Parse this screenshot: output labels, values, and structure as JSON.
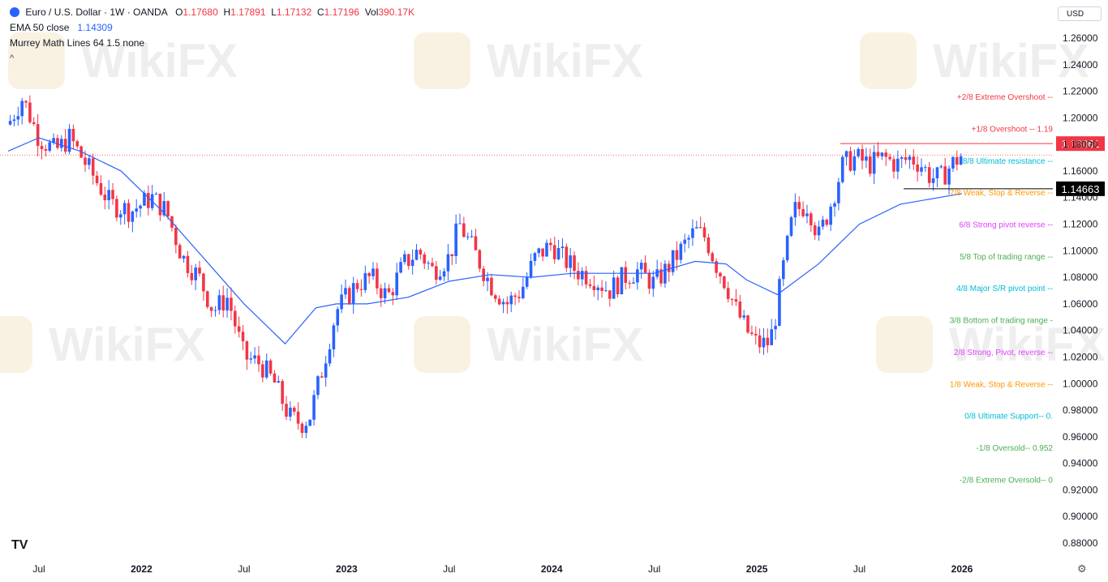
{
  "header": {
    "symbol": "Euro / U.S. Dollar · 1W · OANDA",
    "o_label": "O",
    "o": "1.17680",
    "h_label": "H",
    "h": "1.17891",
    "l_label": "L",
    "l": "1.17132",
    "c_label": "C",
    "c": "1.17196",
    "vol_label": "Vol",
    "vol": "390.17K",
    "ema_label": "EMA 50 close",
    "ema_value": "1.14309",
    "murrey_label": "Murrey Math Lines 64 1.5 none",
    "currency": "USD"
  },
  "watermark": "WikiFX",
  "colors": {
    "up": "#2962ff",
    "down": "#f23645",
    "ema": "#2962ff",
    "resistance": "#f23645",
    "support": "#000000"
  },
  "chart_data": {
    "type": "candlestick",
    "y_ticks": [
      "1.26000",
      "1.24000",
      "1.22000",
      "1.20000",
      "1.18000",
      "1.16000",
      "1.14000",
      "1.12000",
      "1.10000",
      "1.08000",
      "1.06000",
      "1.04000",
      "1.02000",
      "1.00000",
      "0.98000",
      "0.96000",
      "0.94000",
      "0.92000",
      "0.90000",
      "0.88000"
    ],
    "ylim": [
      0.86,
      1.265
    ],
    "x_ticks": [
      {
        "label": "Jul",
        "year": 2021.5
      },
      {
        "label": "2022",
        "year": 2022.0
      },
      {
        "label": "Jul",
        "year": 2022.5
      },
      {
        "label": "2023",
        "year": 2023.0
      },
      {
        "label": "Jul",
        "year": 2023.5
      },
      {
        "label": "2024",
        "year": 2024.0
      },
      {
        "label": "Jul",
        "year": 2024.5
      },
      {
        "label": "2025",
        "year": 2025.0
      },
      {
        "label": "Jul",
        "year": 2025.5
      },
      {
        "label": "2026",
        "year": 2026.0
      }
    ],
    "xlim": [
      2021.35,
      2026.6
    ],
    "bold_years": [
      "2022",
      "2023",
      "2024",
      "2025",
      "2026"
    ],
    "price_path": [
      [
        2021.35,
        1.195
      ],
      [
        2021.42,
        1.215
      ],
      [
        2021.5,
        1.185
      ],
      [
        2021.58,
        1.175
      ],
      [
        2021.65,
        1.185
      ],
      [
        2021.75,
        1.16
      ],
      [
        2021.85,
        1.135
      ],
      [
        2021.95,
        1.13
      ],
      [
        2022.05,
        1.14
      ],
      [
        2022.12,
        1.13
      ],
      [
        2022.2,
        1.095
      ],
      [
        2022.28,
        1.08
      ],
      [
        2022.35,
        1.055
      ],
      [
        2022.42,
        1.065
      ],
      [
        2022.5,
        1.02
      ],
      [
        2022.58,
        1.015
      ],
      [
        2022.65,
        1.0
      ],
      [
        2022.72,
        0.975
      ],
      [
        2022.78,
        0.97
      ],
      [
        2022.82,
        0.975
      ],
      [
        2022.88,
        1.01
      ],
      [
        2022.95,
        1.055
      ],
      [
        2023.05,
        1.075
      ],
      [
        2023.12,
        1.08
      ],
      [
        2023.2,
        1.065
      ],
      [
        2023.28,
        1.09
      ],
      [
        2023.35,
        1.1
      ],
      [
        2023.42,
        1.085
      ],
      [
        2023.5,
        1.095
      ],
      [
        2023.55,
        1.12
      ],
      [
        2023.62,
        1.1
      ],
      [
        2023.7,
        1.075
      ],
      [
        2023.78,
        1.06
      ],
      [
        2023.85,
        1.07
      ],
      [
        2023.92,
        1.095
      ],
      [
        2024.0,
        1.105
      ],
      [
        2024.05,
        1.095
      ],
      [
        2024.12,
        1.085
      ],
      [
        2024.2,
        1.08
      ],
      [
        2024.28,
        1.07
      ],
      [
        2024.35,
        1.08
      ],
      [
        2024.42,
        1.085
      ],
      [
        2024.5,
        1.075
      ],
      [
        2024.58,
        1.09
      ],
      [
        2024.65,
        1.105
      ],
      [
        2024.7,
        1.115
      ],
      [
        2024.75,
        1.11
      ],
      [
        2024.8,
        1.09
      ],
      [
        2024.85,
        1.075
      ],
      [
        2024.9,
        1.055
      ],
      [
        2024.95,
        1.04
      ],
      [
        2025.0,
        1.03
      ],
      [
        2025.05,
        1.03
      ],
      [
        2025.08,
        1.04
      ],
      [
        2025.12,
        1.08
      ],
      [
        2025.18,
        1.13
      ],
      [
        2025.25,
        1.135
      ],
      [
        2025.3,
        1.11
      ],
      [
        2025.35,
        1.13
      ],
      [
        2025.42,
        1.165
      ],
      [
        2025.48,
        1.17
      ],
      [
        2025.55,
        1.165
      ],
      [
        2025.62,
        1.17
      ],
      [
        2025.68,
        1.165
      ],
      [
        2025.75,
        1.17
      ],
      [
        2025.8,
        1.165
      ],
      [
        2025.85,
        1.155
      ],
      [
        2025.9,
        1.155
      ],
      [
        2025.95,
        1.165
      ],
      [
        2026.0,
        1.172
      ]
    ],
    "ema50_path": [
      [
        2021.35,
        1.175
      ],
      [
        2021.5,
        1.185
      ],
      [
        2021.7,
        1.175
      ],
      [
        2021.9,
        1.16
      ],
      [
        2022.1,
        1.13
      ],
      [
        2022.3,
        1.095
      ],
      [
        2022.5,
        1.06
      ],
      [
        2022.7,
        1.03
      ],
      [
        2022.85,
        1.057
      ],
      [
        2022.95,
        1.06
      ],
      [
        2023.1,
        1.06
      ],
      [
        2023.3,
        1.065
      ],
      [
        2023.5,
        1.077
      ],
      [
        2023.7,
        1.082
      ],
      [
        2023.9,
        1.08
      ],
      [
        2024.1,
        1.083
      ],
      [
        2024.3,
        1.083
      ],
      [
        2024.5,
        1.083
      ],
      [
        2024.7,
        1.092
      ],
      [
        2024.85,
        1.09
      ],
      [
        2024.95,
        1.078
      ],
      [
        2025.1,
        1.067
      ],
      [
        2025.3,
        1.09
      ],
      [
        2025.5,
        1.12
      ],
      [
        2025.7,
        1.135
      ],
      [
        2026.0,
        1.143
      ]
    ],
    "price_lines": [
      {
        "label": "1.18061",
        "value": 1.18061,
        "style": "red"
      },
      {
        "label": "1.14663",
        "value": 1.14663,
        "style": "black"
      }
    ],
    "murrey_lines": [
      {
        "label": "+2/8 Extreme Overshoot --",
        "value": 1.216,
        "color": "#f23645"
      },
      {
        "label": "+1/8 Overshoot --  1.19",
        "value": 1.192,
        "color": "#f23645"
      },
      {
        "label": "8/8 Ultimate resistance --",
        "value": 1.168,
        "color": "#00bcd4"
      },
      {
        "label": "7/8 Weak, Stop & Reverse --",
        "value": 1.144,
        "color": "#ff9800"
      },
      {
        "label": "6/8 Strong pivot reverse --",
        "value": 1.12,
        "color": "#e040fb"
      },
      {
        "label": "5/8 Top of trading range --",
        "value": 1.096,
        "color": "#4caf50"
      },
      {
        "label": "4/8 Major S/R pivot point --",
        "value": 1.072,
        "color": "#00bcd4"
      },
      {
        "label": "3/8 Bottom of trading range -",
        "value": 1.048,
        "color": "#4caf50"
      },
      {
        "label": "2/8 Strong, Pivot, reverse --",
        "value": 1.024,
        "color": "#e040fb"
      },
      {
        "label": "1/8 Weak, Stop & Reverse --",
        "value": 1.0,
        "color": "#ff9800"
      },
      {
        "label": "0/8 Ultimate Support--  0.",
        "value": 0.976,
        "color": "#00bcd4"
      },
      {
        "label": "-1/8 Oversold--  0.952",
        "value": 0.952,
        "color": "#4caf50"
      },
      {
        "label": "-2/8 Extreme Oversold--  0",
        "value": 0.928,
        "color": "#4caf50"
      }
    ]
  }
}
